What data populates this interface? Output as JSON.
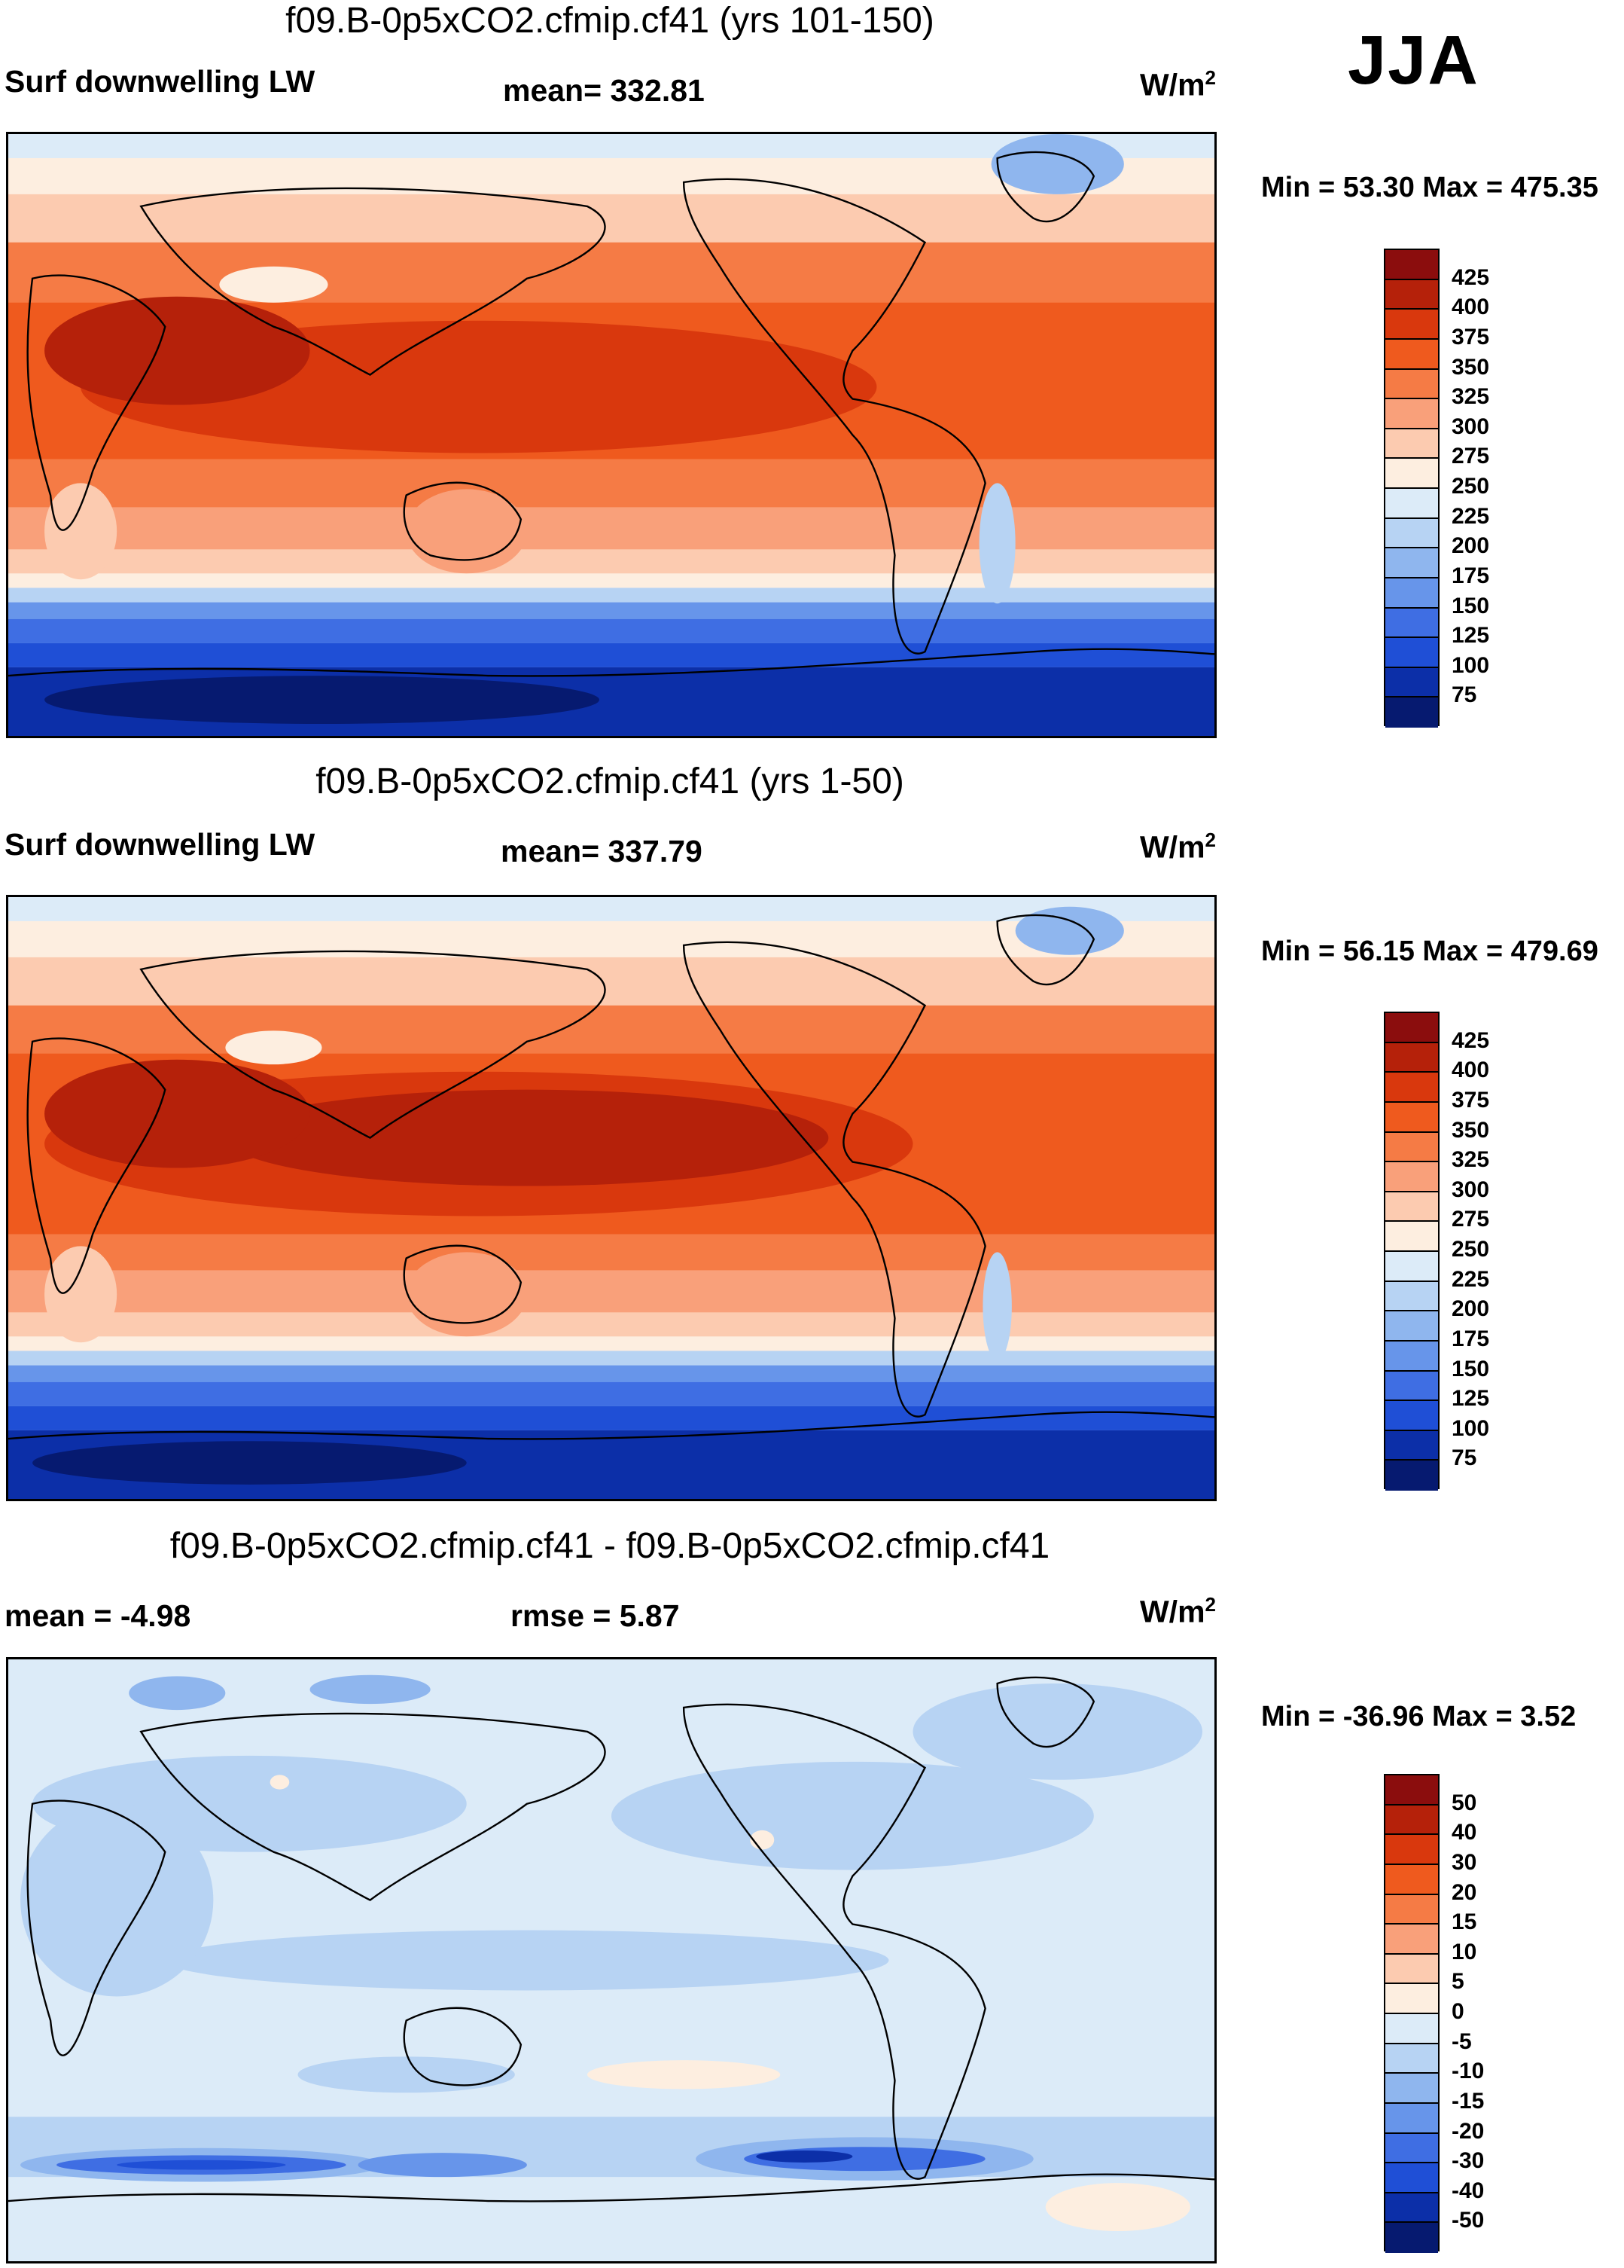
{
  "season": "JJA",
  "panels": [
    {
      "title": "f09.B-0p5xCO2.cfmip.cf41 (yrs 101-150)",
      "left_label": "Surf downwelling LW",
      "center_label": "mean= 332.81",
      "units_base": "W/m",
      "units_exp": "2",
      "minmax": "Min =  53.30 Max = 475.35",
      "colorbar": {
        "labels": [
          "425",
          "400",
          "375",
          "350",
          "325",
          "300",
          "275",
          "250",
          "225",
          "200",
          "175",
          "150",
          "125",
          "100",
          "75"
        ],
        "colors": [
          "#8b0d0d",
          "#b5210a",
          "#d9380d",
          "#ef5a1e",
          "#f57b45",
          "#f9a07a",
          "#fccbb0",
          "#fdeee0",
          "#dcebf8",
          "#b7d3f3",
          "#8fb6ee",
          "#6795ea",
          "#3f6ee3",
          "#1f4fd6",
          "#0c2fa8",
          "#061a70"
        ]
      },
      "chart_data": {
        "type": "heatmap",
        "variable": "Surf downwelling LW",
        "mean": 332.81,
        "min": 53.3,
        "max": 475.35,
        "units": "W/m2",
        "levels": [
          75,
          100,
          125,
          150,
          175,
          200,
          225,
          250,
          275,
          300,
          325,
          350,
          375,
          400,
          425
        ]
      }
    },
    {
      "title": "f09.B-0p5xCO2.cfmip.cf41 (yrs 1-50)",
      "left_label": "Surf downwelling LW",
      "center_label": "mean= 337.79",
      "units_base": "W/m",
      "units_exp": "2",
      "minmax": "Min =  56.15 Max = 479.69",
      "colorbar": {
        "labels": [
          "425",
          "400",
          "375",
          "350",
          "325",
          "300",
          "275",
          "250",
          "225",
          "200",
          "175",
          "150",
          "125",
          "100",
          "75"
        ],
        "colors": [
          "#8b0d0d",
          "#b5210a",
          "#d9380d",
          "#ef5a1e",
          "#f57b45",
          "#f9a07a",
          "#fccbb0",
          "#fdeee0",
          "#dcebf8",
          "#b7d3f3",
          "#8fb6ee",
          "#6795ea",
          "#3f6ee3",
          "#1f4fd6",
          "#0c2fa8",
          "#061a70"
        ]
      },
      "chart_data": {
        "type": "heatmap",
        "variable": "Surf downwelling LW",
        "mean": 337.79,
        "min": 56.15,
        "max": 479.69,
        "units": "W/m2",
        "levels": [
          75,
          100,
          125,
          150,
          175,
          200,
          225,
          250,
          275,
          300,
          325,
          350,
          375,
          400,
          425
        ]
      }
    },
    {
      "title": "f09.B-0p5xCO2.cfmip.cf41 - f09.B-0p5xCO2.cfmip.cf41",
      "left_label": "mean =  -4.98",
      "center_label": "rmse =   5.87",
      "units_base": "W/m",
      "units_exp": "2",
      "minmax": "Min = -36.96 Max =   3.52",
      "colorbar": {
        "labels": [
          "50",
          "40",
          "30",
          "20",
          "15",
          "10",
          "5",
          "0",
          "-5",
          "-10",
          "-15",
          "-20",
          "-30",
          "-40",
          "-50"
        ],
        "colors": [
          "#8b0d0d",
          "#b5210a",
          "#d9380d",
          "#ef5a1e",
          "#f57b45",
          "#f9a07a",
          "#fccbb0",
          "#fdeee0",
          "#dcebf8",
          "#b7d3f3",
          "#8fb6ee",
          "#6795ea",
          "#3f6ee3",
          "#1f4fd6",
          "#0c2fa8",
          "#061a70"
        ]
      },
      "chart_data": {
        "type": "heatmap",
        "mean": -4.98,
        "rmse": 5.87,
        "min": -36.96,
        "max": 3.52,
        "units": "W/m2",
        "levels": [
          -50,
          -40,
          -30,
          -20,
          -15,
          -10,
          -5,
          0,
          5,
          10,
          15,
          20,
          30,
          40,
          50
        ]
      }
    }
  ]
}
